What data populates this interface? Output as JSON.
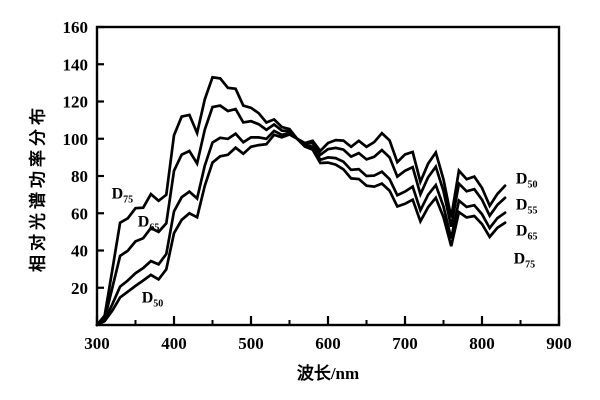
{
  "figure": {
    "background": "#ffffff",
    "ink_color": "#000000"
  },
  "chart_data": {
    "type": "line",
    "title": "",
    "xlabel": "波长/nm",
    "ylabel": "相对光谱功率分布",
    "xlim": [
      300,
      900
    ],
    "ylim": [
      0,
      160
    ],
    "grid": false,
    "legend_position": "inline-curve-labels",
    "x_ticks": [
      300,
      400,
      500,
      600,
      700,
      800,
      900
    ],
    "x_minor_ticks": [
      350,
      450,
      550,
      650,
      750,
      850
    ],
    "y_ticks": [
      20,
      40,
      60,
      80,
      100,
      120,
      140,
      160
    ],
    "x": [
      300,
      310,
      320,
      330,
      340,
      350,
      360,
      370,
      380,
      390,
      400,
      410,
      420,
      430,
      440,
      450,
      460,
      470,
      480,
      490,
      500,
      510,
      520,
      530,
      540,
      550,
      560,
      570,
      580,
      590,
      600,
      610,
      620,
      630,
      640,
      650,
      660,
      670,
      680,
      690,
      700,
      710,
      720,
      730,
      740,
      750,
      760,
      770,
      780,
      790,
      800,
      810,
      820,
      830
    ],
    "series": [
      {
        "name": "D50",
        "values": [
          0.0,
          2.1,
          7.8,
          14.8,
          17.9,
          21.0,
          23.9,
          26.9,
          24.5,
          29.9,
          49.3,
          56.5,
          60.0,
          57.8,
          74.8,
          87.2,
          90.6,
          91.4,
          95.2,
          92.0,
          95.7,
          96.6,
          97.1,
          102.1,
          100.8,
          102.3,
          100.0,
          97.7,
          98.9,
          93.5,
          97.7,
          99.3,
          99.0,
          95.7,
          98.9,
          95.7,
          98.2,
          103.0,
          99.1,
          87.4,
          91.6,
          92.9,
          76.9,
          86.6,
          92.6,
          78.2,
          57.7,
          82.9,
          78.3,
          79.7,
          73.6,
          64.0,
          70.4,
          74.8
        ]
      },
      {
        "name": "D55",
        "values": [
          0.0,
          2.6,
          11.2,
          20.6,
          23.9,
          27.8,
          30.6,
          34.3,
          32.6,
          38.1,
          61.0,
          68.6,
          71.6,
          67.9,
          85.6,
          98.0,
          100.5,
          99.9,
          102.7,
          98.1,
          100.7,
          100.7,
          100.0,
          104.2,
          102.1,
          103.0,
          100.0,
          97.2,
          97.7,
          91.4,
          94.4,
          95.1,
          94.2,
          90.4,
          92.3,
          88.9,
          90.3,
          93.9,
          90.0,
          79.7,
          82.8,
          84.8,
          70.2,
          79.3,
          85.0,
          71.9,
          52.8,
          75.9,
          71.8,
          72.9,
          67.3,
          58.7,
          64.5,
          68.3
        ]
      },
      {
        "name": "D65",
        "values": [
          0.0,
          3.3,
          20.2,
          37.1,
          39.9,
          44.9,
          46.6,
          52.1,
          50.0,
          54.6,
          82.8,
          91.5,
          93.4,
          86.7,
          104.9,
          117.0,
          117.8,
          114.9,
          115.9,
          108.8,
          109.4,
          107.8,
          104.8,
          107.7,
          104.4,
          104.0,
          100.0,
          96.3,
          95.8,
          88.7,
          90.0,
          89.6,
          87.7,
          83.3,
          83.7,
          80.0,
          80.2,
          82.3,
          78.3,
          69.7,
          71.6,
          74.3,
          61.6,
          69.9,
          75.1,
          63.6,
          46.4,
          66.8,
          63.4,
          64.3,
          59.5,
          52.0,
          57.4,
          60.3
        ]
      },
      {
        "name": "D75",
        "values": [
          0.0,
          5.1,
          29.8,
          54.9,
          57.3,
          62.7,
          63.0,
          70.3,
          66.7,
          69.9,
          101.9,
          111.9,
          112.8,
          103.1,
          121.2,
          133.0,
          132.4,
          127.3,
          126.8,
          117.8,
          116.6,
          113.7,
          108.7,
          110.4,
          106.3,
          105.2,
          100.0,
          95.8,
          94.2,
          87.0,
          87.2,
          86.1,
          83.6,
          78.7,
          78.4,
          74.8,
          74.3,
          75.9,
          72.1,
          63.6,
          65.1,
          67.3,
          55.7,
          63.2,
          68.3,
          57.8,
          42.3,
          60.6,
          57.7,
          58.5,
          54.2,
          47.3,
          52.2,
          54.9
        ]
      }
    ],
    "curve_labels": [
      {
        "text": "D",
        "sub": "75",
        "x_nm": 319,
        "y_val": 68,
        "side": "left"
      },
      {
        "text": "D",
        "sub": "65",
        "x_nm": 353,
        "y_val": 53,
        "side": "left"
      },
      {
        "text": "D",
        "sub": "50",
        "x_nm": 358,
        "y_val": 12,
        "side": "left"
      },
      {
        "text": "D",
        "sub": "50",
        "x_nm": 844,
        "y_val": 76,
        "side": "right"
      },
      {
        "text": "D",
        "sub": "55",
        "x_nm": 844,
        "y_val": 62,
        "side": "right"
      },
      {
        "text": "D",
        "sub": "65",
        "x_nm": 844,
        "y_val": 48,
        "side": "right"
      },
      {
        "text": "D",
        "sub": "75",
        "x_nm": 841,
        "y_val": 33,
        "side": "right"
      }
    ]
  }
}
